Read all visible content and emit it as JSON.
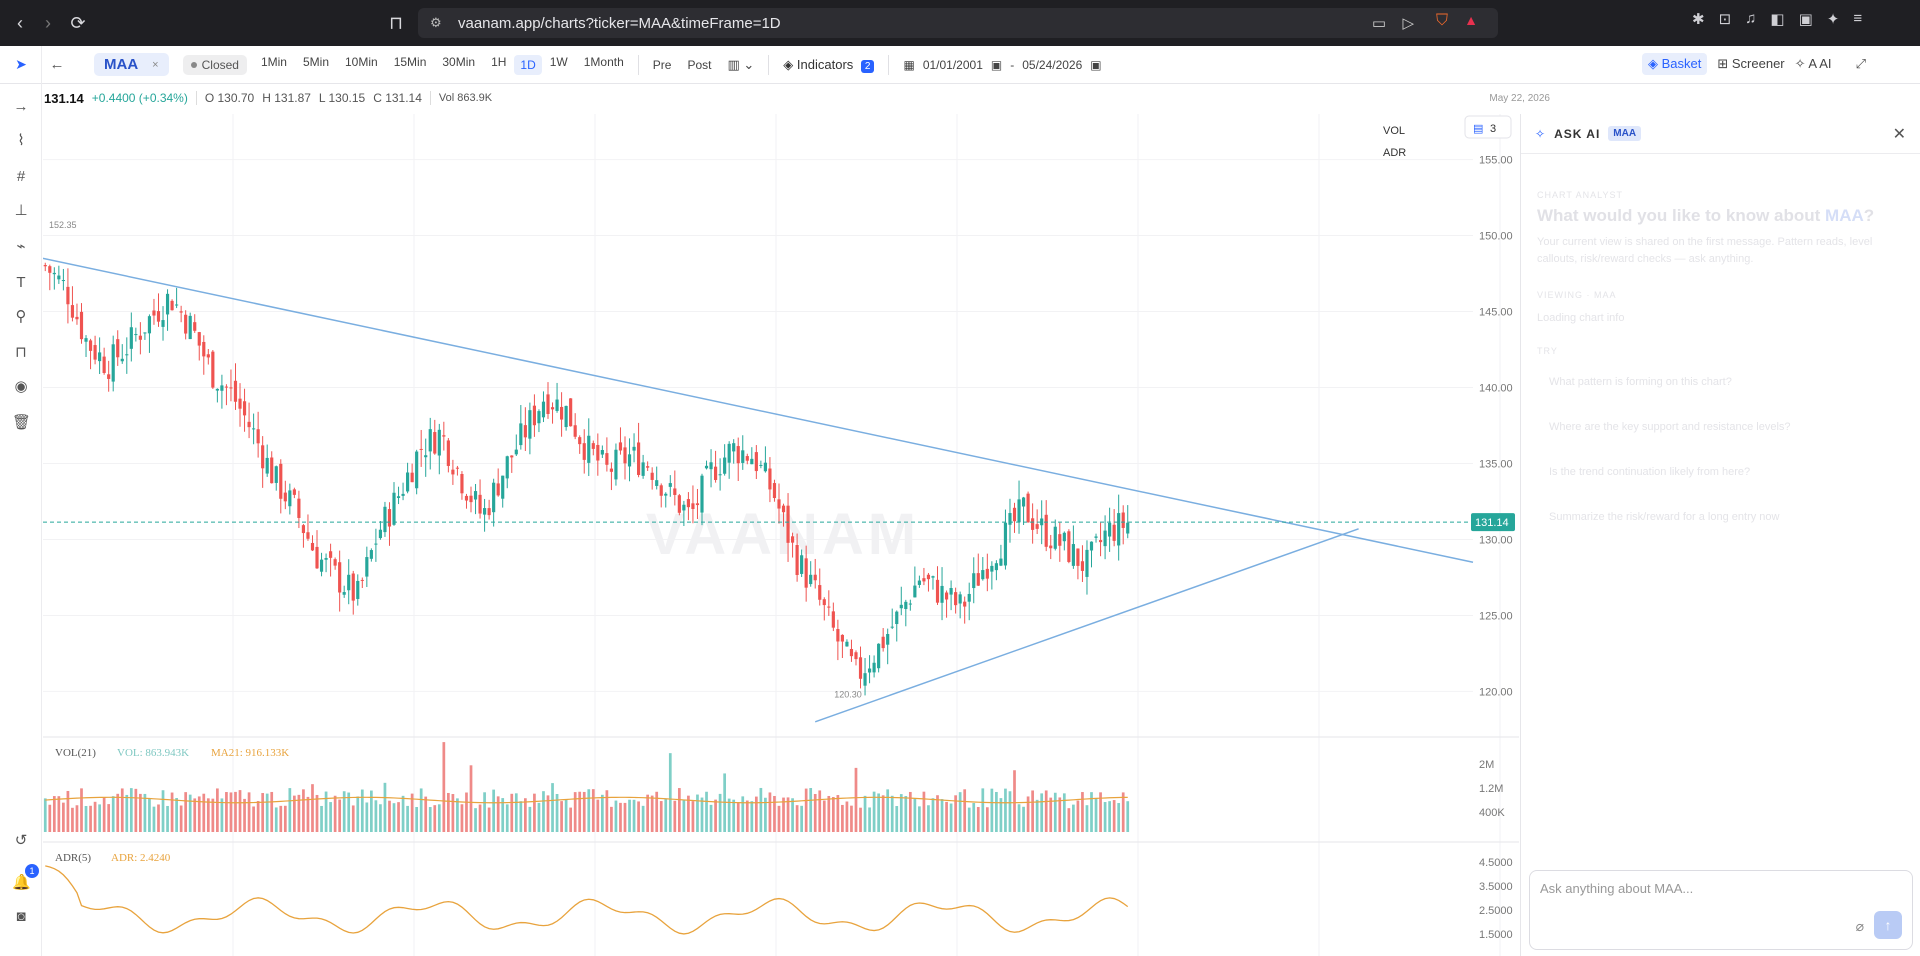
{
  "browser": {
    "url": "vaanam.app/charts?ticker=MAA&timeFrame=1D"
  },
  "toolbar": {
    "ticker": "MAA",
    "ticker_close": "×",
    "market_status": "Closed",
    "timeframes": [
      "1Min",
      "5Min",
      "10Min",
      "15Min",
      "30Min",
      "1H",
      "1D",
      "1W",
      "1Month"
    ],
    "active_timeframe": "1D",
    "session_pre": "Pre",
    "session_post": "Post",
    "indicators_label": "Indicators",
    "indicators_count": "2",
    "date_from": "01/01/2001",
    "date_sep": "-",
    "date_to": "05/24/2026",
    "basket_label": "Basket",
    "screener_label": "Screener",
    "ai_label": "AI"
  },
  "quote": {
    "price": "131.14",
    "change": "+0.4400 (+0.34%)",
    "open": "O 130.70",
    "high": "H 131.87",
    "low": "L 130.15",
    "close": "C 131.14",
    "volume": "Vol 863.9K",
    "date": "May 22, 2026"
  },
  "chart_data": {
    "type": "candlestick",
    "ticker": "MAA",
    "price_axis_ticks": [
      "155.00",
      "150.00",
      "145.00",
      "140.00",
      "135.00",
      "130.00",
      "125.00",
      "120.00"
    ],
    "ylim": [
      117.0,
      158.0
    ],
    "last_price": 131.14,
    "last_price_label": "131.14",
    "high_label": "152.35",
    "low_label": "120.30",
    "watermark": "VAANAM",
    "legend_vol": "VOL",
    "legend_adr": "ADR",
    "alerts_count": "3",
    "close_path": [
      148,
      146.5,
      143,
      141.5,
      142.8,
      144.5,
      146,
      144,
      141,
      139.5,
      137,
      134,
      132,
      129,
      127.5,
      126.2,
      130.5,
      133,
      136,
      137,
      134,
      131.5,
      134.5,
      137,
      139.5,
      138.5,
      136,
      134.5,
      135.5,
      135,
      133,
      131.5,
      134.5,
      136,
      135.5,
      133,
      129,
      126.5,
      123.5,
      121,
      122.8,
      125,
      127.5,
      126.5,
      125.5,
      128,
      130,
      132,
      130.5,
      129.5,
      128.2,
      130.5,
      131.1
    ],
    "trendline_upper": {
      "from": [
        0,
        148.5
      ],
      "to": [
        1,
        128.5
      ]
    },
    "trendline_lower": {
      "from": [
        0.54,
        118.0
      ],
      "to": [
        0.92,
        130.7
      ]
    },
    "volume_panel": {
      "title": "VOL(21)",
      "vol_value": "VOL: 863.943K",
      "ma_value": "MA21: 916.133K",
      "axis_ticks": [
        "2M",
        "1.2M",
        "400K"
      ]
    },
    "adr_panel": {
      "title": "ADR(5)",
      "adr_value": "ADR: 2.4240",
      "axis_ticks": [
        "4.5000",
        "3.5000",
        "2.5000",
        "1.5000"
      ]
    }
  },
  "ai_panel": {
    "title": "ASK AI",
    "ticker": "MAA",
    "section": "CHART ANALYST",
    "question_prefix": "What would you like to know about ",
    "question_ticker": "MAA",
    "question_suffix": "?",
    "intro": "Your current view is shared on the first message. Pattern reads, level callouts, risk/reward checks — ask anything.",
    "viewing": "VIEWING · MAA",
    "viewing_detail": "Loading chart info",
    "try_label": "TRY",
    "suggestions": [
      "What pattern is forming on this chart?",
      "Where are the key support and resistance levels?",
      "Is the trend continuation likely from here?",
      "Summarize the risk/reward for a long entry now"
    ],
    "input_placeholder": "Ask anything about MAA..."
  },
  "rail": {
    "notifications_count": "1"
  }
}
